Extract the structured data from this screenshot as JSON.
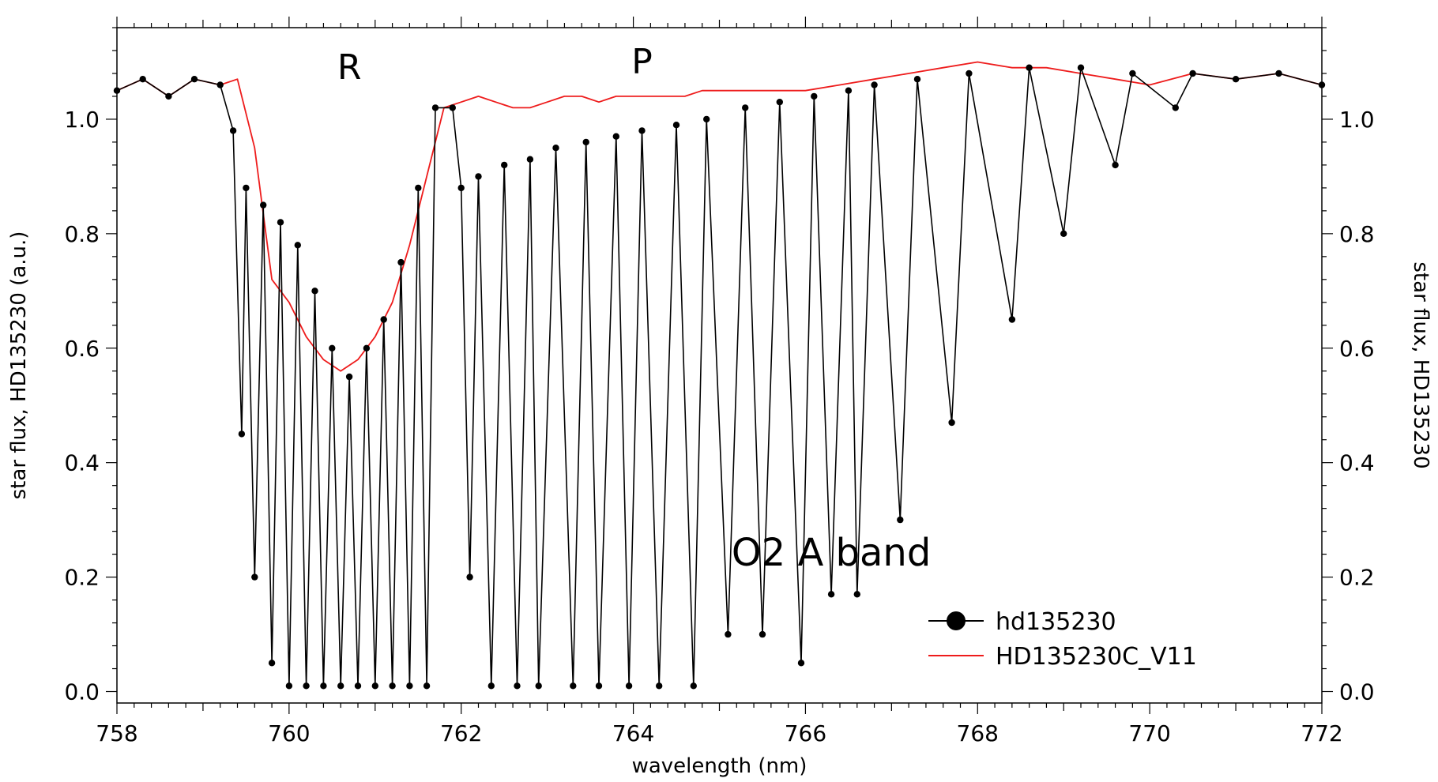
{
  "chart_data": {
    "type": "line",
    "xlabel": "wavelength (nm)",
    "ylabel": "star flux, HD135230 (a.u.)",
    "ylabel_right": "star flux, HD135230",
    "xlim": [
      758,
      772
    ],
    "ylim": [
      -0.02,
      1.16
    ],
    "x_ticks": [
      758,
      760,
      762,
      764,
      766,
      768,
      770,
      772
    ],
    "x_tick_labels": [
      "758",
      "760",
      "762",
      "764",
      "766",
      "768",
      "770",
      "772"
    ],
    "y_ticks": [
      0.0,
      0.2,
      0.4,
      0.6,
      0.8,
      1.0
    ],
    "y_tick_labels": [
      "0.0",
      "0.2",
      "0.4",
      "0.6",
      "0.8",
      "1.0"
    ],
    "annotations": [
      {
        "text": "R",
        "x": 760.7,
        "y": 1.07
      },
      {
        "text": "P",
        "x": 764.1,
        "y": 1.08
      },
      {
        "text": "O2 A band",
        "x": 766.3,
        "y": 0.22
      }
    ],
    "series": [
      {
        "name": "hd135230",
        "color": "#000000",
        "marker": "circle",
        "points": [
          [
            758.0,
            1.05
          ],
          [
            758.3,
            1.07
          ],
          [
            758.6,
            1.04
          ],
          [
            758.9,
            1.07
          ],
          [
            759.2,
            1.06
          ],
          [
            759.35,
            0.98
          ],
          [
            759.45,
            0.45
          ],
          [
            759.5,
            0.88
          ],
          [
            759.6,
            0.2
          ],
          [
            759.7,
            0.85
          ],
          [
            759.8,
            0.05
          ],
          [
            759.9,
            0.82
          ],
          [
            760.0,
            0.01
          ],
          [
            760.1,
            0.78
          ],
          [
            760.2,
            0.01
          ],
          [
            760.3,
            0.7
          ],
          [
            760.4,
            0.01
          ],
          [
            760.5,
            0.6
          ],
          [
            760.6,
            0.01
          ],
          [
            760.7,
            0.55
          ],
          [
            760.8,
            0.01
          ],
          [
            760.9,
            0.6
          ],
          [
            761.0,
            0.01
          ],
          [
            761.1,
            0.65
          ],
          [
            761.2,
            0.01
          ],
          [
            761.3,
            0.75
          ],
          [
            761.4,
            0.01
          ],
          [
            761.5,
            0.88
          ],
          [
            761.6,
            0.01
          ],
          [
            761.7,
            1.02
          ],
          [
            761.9,
            1.02
          ],
          [
            762.0,
            0.88
          ],
          [
            762.1,
            0.2
          ],
          [
            762.2,
            0.9
          ],
          [
            762.35,
            0.01
          ],
          [
            762.5,
            0.92
          ],
          [
            762.65,
            0.01
          ],
          [
            762.8,
            0.93
          ],
          [
            762.9,
            0.01
          ],
          [
            763.1,
            0.95
          ],
          [
            763.3,
            0.01
          ],
          [
            763.45,
            0.96
          ],
          [
            763.6,
            0.01
          ],
          [
            763.8,
            0.97
          ],
          [
            763.95,
            0.01
          ],
          [
            764.1,
            0.98
          ],
          [
            764.3,
            0.01
          ],
          [
            764.5,
            0.99
          ],
          [
            764.7,
            0.01
          ],
          [
            764.85,
            1.0
          ],
          [
            765.1,
            0.1
          ],
          [
            765.3,
            1.02
          ],
          [
            765.5,
            0.1
          ],
          [
            765.7,
            1.03
          ],
          [
            765.95,
            0.05
          ],
          [
            766.1,
            1.04
          ],
          [
            766.3,
            0.17
          ],
          [
            766.5,
            1.05
          ],
          [
            766.6,
            0.17
          ],
          [
            766.8,
            1.06
          ],
          [
            767.1,
            0.3
          ],
          [
            767.3,
            1.07
          ],
          [
            767.7,
            0.47
          ],
          [
            767.9,
            1.08
          ],
          [
            768.4,
            0.65
          ],
          [
            768.6,
            1.09
          ],
          [
            769.0,
            0.8
          ],
          [
            769.2,
            1.09
          ],
          [
            769.6,
            0.92
          ],
          [
            769.8,
            1.08
          ],
          [
            770.3,
            1.02
          ],
          [
            770.5,
            1.08
          ],
          [
            771.0,
            1.07
          ],
          [
            771.5,
            1.08
          ],
          [
            772.0,
            1.06
          ]
        ]
      },
      {
        "name": "HD135230C_V11",
        "color": "#ee1c1c",
        "marker": "none",
        "points": [
          [
            758.0,
            1.05
          ],
          [
            758.3,
            1.07
          ],
          [
            758.6,
            1.04
          ],
          [
            758.9,
            1.07
          ],
          [
            759.2,
            1.06
          ],
          [
            759.4,
            1.07
          ],
          [
            759.6,
            0.95
          ],
          [
            759.8,
            0.72
          ],
          [
            760.0,
            0.68
          ],
          [
            760.2,
            0.62
          ],
          [
            760.4,
            0.58
          ],
          [
            760.6,
            0.56
          ],
          [
            760.8,
            0.58
          ],
          [
            761.0,
            0.62
          ],
          [
            761.2,
            0.68
          ],
          [
            761.4,
            0.78
          ],
          [
            761.6,
            0.9
          ],
          [
            761.8,
            1.02
          ],
          [
            762.0,
            1.03
          ],
          [
            762.2,
            1.04
          ],
          [
            762.4,
            1.03
          ],
          [
            762.6,
            1.02
          ],
          [
            762.8,
            1.02
          ],
          [
            763.0,
            1.03
          ],
          [
            763.2,
            1.04
          ],
          [
            763.4,
            1.04
          ],
          [
            763.6,
            1.03
          ],
          [
            763.8,
            1.04
          ],
          [
            764.0,
            1.04
          ],
          [
            764.2,
            1.04
          ],
          [
            764.4,
            1.04
          ],
          [
            764.6,
            1.04
          ],
          [
            764.8,
            1.05
          ],
          [
            765.0,
            1.05
          ],
          [
            765.2,
            1.05
          ],
          [
            765.4,
            1.05
          ],
          [
            765.6,
            1.05
          ],
          [
            765.8,
            1.05
          ],
          [
            766.0,
            1.05
          ],
          [
            766.4,
            1.06
          ],
          [
            766.8,
            1.07
          ],
          [
            767.2,
            1.08
          ],
          [
            767.6,
            1.09
          ],
          [
            768.0,
            1.1
          ],
          [
            768.4,
            1.09
          ],
          [
            768.8,
            1.09
          ],
          [
            769.2,
            1.08
          ],
          [
            769.6,
            1.07
          ],
          [
            770.0,
            1.06
          ],
          [
            770.5,
            1.08
          ],
          [
            771.0,
            1.07
          ],
          [
            771.5,
            1.08
          ],
          [
            772.0,
            1.06
          ]
        ]
      }
    ],
    "legend": {
      "placement": "bottom-right",
      "entries": [
        "hd135230",
        "HD135230C_V11"
      ]
    }
  }
}
